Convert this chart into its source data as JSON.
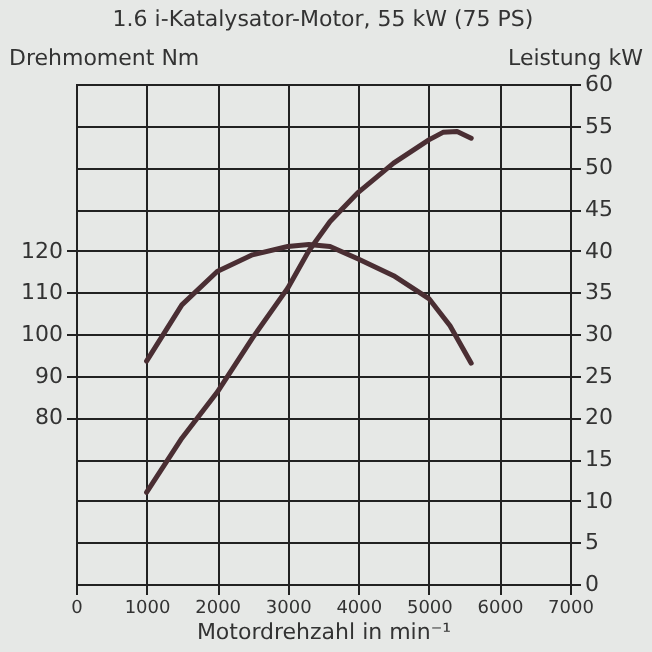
{
  "chart_data": {
    "type": "line",
    "title": "1.6 i-Katalysator-Motor, 55 kW (75 PS)",
    "xlabel": "Motordrehzahl in min⁻¹",
    "ylabel": "Drehmoment Nm",
    "y2label": "Leistung kW",
    "series": [
      {
        "color": "#4a2e33",
        "x": [
          1000,
          1500,
          2000,
          2500,
          3000,
          3300,
          3600,
          4000,
          4500,
          5000,
          5300,
          5600
        ],
        "values": [
          93.5,
          107,
          115,
          119,
          121,
          121.5,
          121,
          118,
          114,
          108.5,
          102,
          93
        ]
      },
      {
        "color": "#4a2e33",
        "axis": "y2",
        "x": [
          1000,
          1500,
          2000,
          2500,
          3000,
          3300,
          3600,
          4000,
          4500,
          5000,
          5200,
          5400,
          5600
        ],
        "values": [
          11,
          17.5,
          23,
          29.5,
          35.5,
          40,
          43.5,
          47,
          50.5,
          53.3,
          54.2,
          54.3,
          53.5
        ]
      }
    ],
    "xlim": [
      0,
      7000
    ],
    "xticks": [
      0,
      1000,
      2000,
      3000,
      4000,
      5000,
      6000,
      7000
    ],
    "ylim": [
      40,
      160
    ],
    "yticks": [
      80,
      90,
      100,
      110,
      120
    ],
    "y2lim": [
      0,
      60
    ],
    "y2ticks": [
      0,
      5,
      10,
      15,
      20,
      25,
      30,
      35,
      40,
      45,
      50,
      55,
      60
    ],
    "grid": true,
    "line_style": "solid",
    "marker": "none"
  }
}
